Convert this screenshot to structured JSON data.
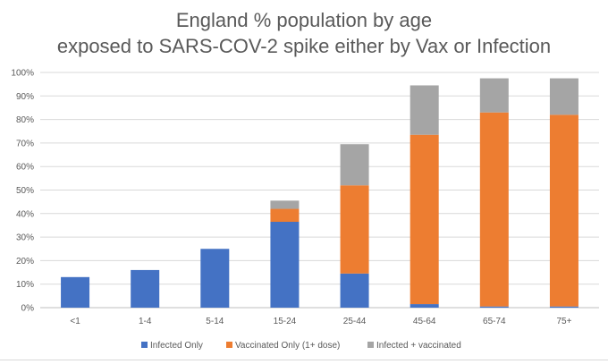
{
  "chart_data": {
    "type": "bar",
    "stacked": true,
    "title_lines": [
      "England % population by age",
      "exposed to SARS-COV-2 spike either by Vax or Infection"
    ],
    "xlabel": "",
    "ylabel": "",
    "categories": [
      "<1",
      "1-4",
      "5-14",
      "15-24",
      "25-44",
      "45-64",
      "65-74",
      "75+"
    ],
    "ylim": [
      0,
      100
    ],
    "yticks": [
      0,
      10,
      20,
      30,
      40,
      50,
      60,
      70,
      80,
      90,
      100
    ],
    "ytick_labels": [
      "0%",
      "10%",
      "20%",
      "30%",
      "40%",
      "50%",
      "60%",
      "70%",
      "80%",
      "90%",
      "100%"
    ],
    "grid": true,
    "legend_position": "bottom",
    "series": [
      {
        "name": "Infected Only",
        "color": "#4472c4",
        "values": [
          13,
          16,
          25,
          36.5,
          14.5,
          1.5,
          0.5,
          0.5
        ]
      },
      {
        "name": "Vaccinated Only (1+ dose)",
        "color": "#ed7d31",
        "values": [
          0,
          0,
          0,
          5.5,
          37.5,
          72,
          82.5,
          81.5
        ]
      },
      {
        "name": "Infected + vaccinated",
        "color": "#a5a5a5",
        "values": [
          0,
          0,
          0,
          3.5,
          17.5,
          21,
          14.5,
          15.5
        ]
      }
    ]
  }
}
